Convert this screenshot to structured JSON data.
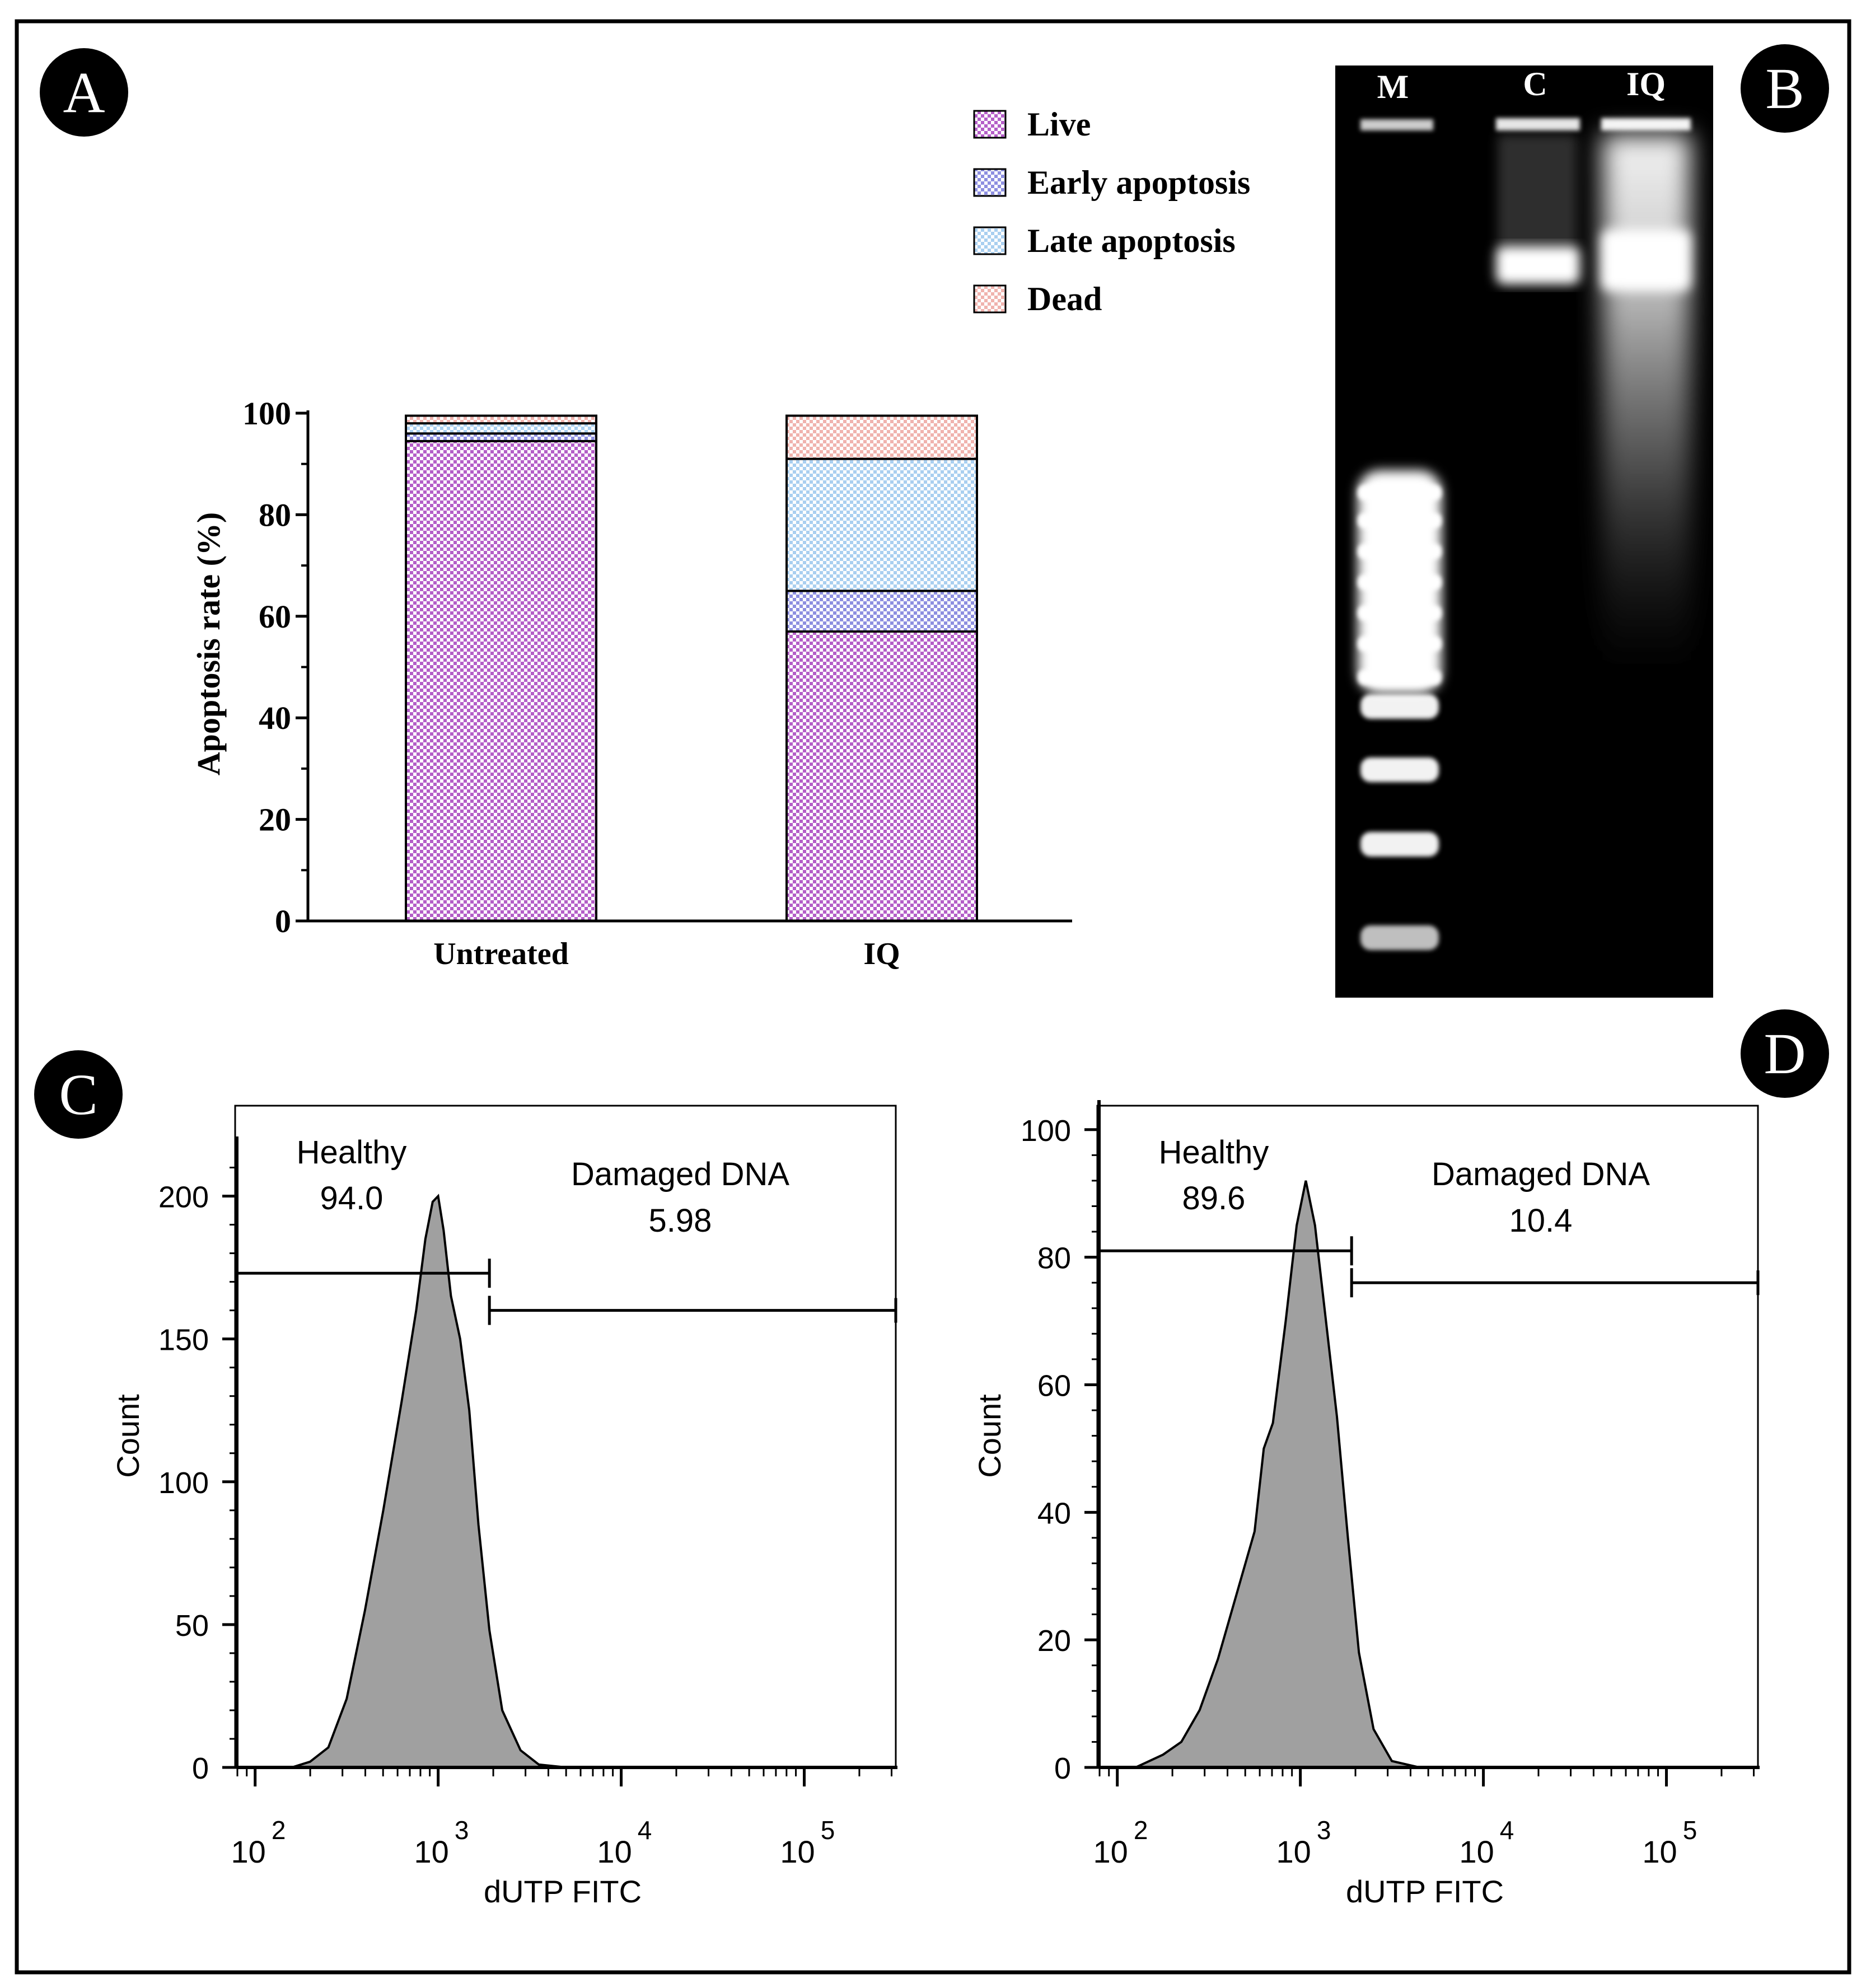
{
  "panels": {
    "a": "A",
    "b": "B",
    "c": "C",
    "d": "D"
  },
  "colors": {
    "live": "#b45ec8",
    "early": "#8d8fe0",
    "late": "#a9cff0",
    "dead": "#f0b3ae",
    "histogram_fill": "#a0a0a0"
  },
  "chart_data": [
    {
      "panel": "A",
      "type": "bar",
      "stacked": true,
      "categories": [
        "Untreated",
        "IQ"
      ],
      "series": [
        {
          "name": "Live",
          "values": [
            94.5,
            57
          ]
        },
        {
          "name": "Early apoptosis",
          "values": [
            1.5,
            8
          ]
        },
        {
          "name": "Late apoptosis",
          "values": [
            2,
            26
          ]
        },
        {
          "name": "Dead",
          "values": [
            1.5,
            8.5
          ]
        }
      ],
      "ylabel": "Apoptosis rate (%)",
      "xlabel": "",
      "ylim": [
        0,
        100
      ],
      "yticks": [
        "0",
        "20",
        "40",
        "60",
        "80",
        "100"
      ],
      "legend_position": "top-right"
    },
    {
      "panel": "B",
      "type": "other",
      "description": "agarose gel",
      "lanes": [
        "M",
        "C",
        "IQ"
      ]
    },
    {
      "panel": "C",
      "type": "area",
      "xlabel": "dUTP FITC",
      "ylabel": "Count",
      "ylim": [
        0,
        215
      ],
      "yticks": [
        "0",
        "50",
        "100",
        "150",
        "200"
      ],
      "xticks": [
        {
          "base": "10",
          "exp": "2",
          "value": 100
        },
        {
          "base": "10",
          "exp": "3",
          "value": 1000
        },
        {
          "base": "10",
          "exp": "4",
          "value": 10000
        },
        {
          "base": "10",
          "exp": "5",
          "value": 100000
        }
      ],
      "xlim_log10": [
        1.9,
        5.5
      ],
      "gates": [
        {
          "name": "Healthy",
          "value": "94.0",
          "from": 1.9,
          "to": 3.28,
          "level": 173
        },
        {
          "name": "Damaged DNA",
          "value": "5.98",
          "from": 3.28,
          "to": 5.5,
          "level": 160
        }
      ],
      "histogram": [
        [
          2.2,
          0
        ],
        [
          2.3,
          2
        ],
        [
          2.4,
          7
        ],
        [
          2.5,
          24
        ],
        [
          2.6,
          55
        ],
        [
          2.7,
          90
        ],
        [
          2.8,
          128
        ],
        [
          2.88,
          160
        ],
        [
          2.93,
          185
        ],
        [
          2.97,
          198
        ],
        [
          3.0,
          200
        ],
        [
          3.03,
          188
        ],
        [
          3.07,
          165
        ],
        [
          3.12,
          150
        ],
        [
          3.17,
          125
        ],
        [
          3.22,
          85
        ],
        [
          3.28,
          48
        ],
        [
          3.35,
          20
        ],
        [
          3.45,
          6
        ],
        [
          3.55,
          1
        ],
        [
          3.7,
          0
        ]
      ]
    },
    {
      "panel": "D",
      "type": "area",
      "xlabel": "dUTP FITC",
      "ylabel": "Count",
      "ylim": [
        0,
        102
      ],
      "yticks": [
        "0",
        "20",
        "40",
        "60",
        "80",
        "100"
      ],
      "xticks": [
        {
          "base": "10",
          "exp": "2",
          "value": 100
        },
        {
          "base": "10",
          "exp": "3",
          "value": 1000
        },
        {
          "base": "10",
          "exp": "4",
          "value": 10000
        },
        {
          "base": "10",
          "exp": "5",
          "value": 100000
        }
      ],
      "xlim_log10": [
        1.9,
        5.5
      ],
      "gates": [
        {
          "name": "Healthy",
          "value": "89.6",
          "from": 1.9,
          "to": 3.28,
          "level": 81
        },
        {
          "name": "Damaged DNA",
          "value": "10.4",
          "from": 3.28,
          "to": 5.5,
          "level": 76
        }
      ],
      "histogram": [
        [
          2.1,
          0
        ],
        [
          2.25,
          2
        ],
        [
          2.35,
          4
        ],
        [
          2.45,
          9
        ],
        [
          2.55,
          17
        ],
        [
          2.65,
          27
        ],
        [
          2.75,
          37
        ],
        [
          2.8,
          50
        ],
        [
          2.85,
          54
        ],
        [
          2.92,
          70
        ],
        [
          2.98,
          85
        ],
        [
          3.03,
          92
        ],
        [
          3.08,
          85
        ],
        [
          3.14,
          70
        ],
        [
          3.2,
          55
        ],
        [
          3.26,
          36
        ],
        [
          3.32,
          18
        ],
        [
          3.4,
          6
        ],
        [
          3.5,
          1
        ],
        [
          3.65,
          0
        ]
      ]
    }
  ]
}
